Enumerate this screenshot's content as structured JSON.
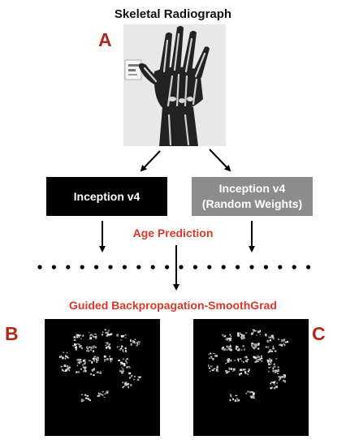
{
  "title": "Skeletal Radiograph",
  "panels": {
    "a": "A",
    "b": "B",
    "c": "C"
  },
  "models": {
    "left": {
      "line1": "Inception v4",
      "line2": ""
    },
    "right": {
      "line1": "Inception v4",
      "line2": "(Random Weights)"
    }
  },
  "labels": {
    "age_prediction": "Age Prediction",
    "method": "Guided Backpropagation-SmoothGrad"
  },
  "colors": {
    "accent_red": "#d93a2b",
    "panel_letter": "#b02a1c",
    "box_black": "#000000",
    "box_gray": "#8c8c8c"
  }
}
